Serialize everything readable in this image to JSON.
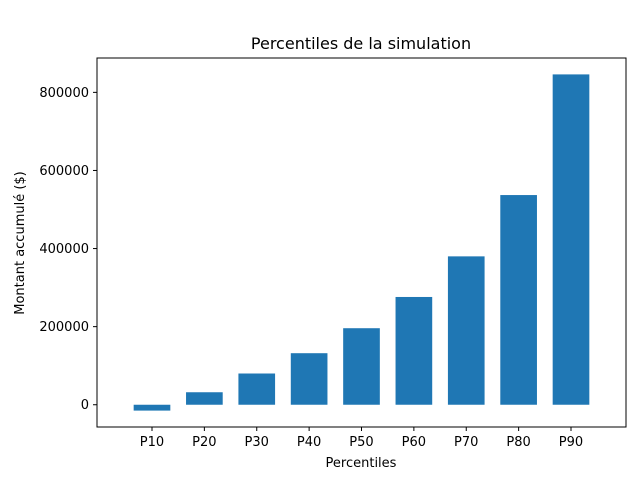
{
  "chart_data": {
    "type": "bar",
    "title": "Percentiles de la simulation",
    "xlabel": "Percentiles",
    "ylabel": "Montant accumulé ($)",
    "categories": [
      "P10",
      "P20",
      "P30",
      "P40",
      "P50",
      "P60",
      "P70",
      "P80",
      "P90"
    ],
    "values": [
      -15000,
      32000,
      80000,
      132000,
      196000,
      276000,
      380000,
      537000,
      846000
    ],
    "ylim": [
      -57000,
      888000
    ],
    "yticks": [
      0,
      200000,
      400000,
      600000,
      800000
    ],
    "ytick_labels": [
      "0",
      "200000",
      "400000",
      "600000",
      "800000"
    ],
    "grid": false,
    "legend": "none",
    "bar_color": "#1f77b4"
  }
}
